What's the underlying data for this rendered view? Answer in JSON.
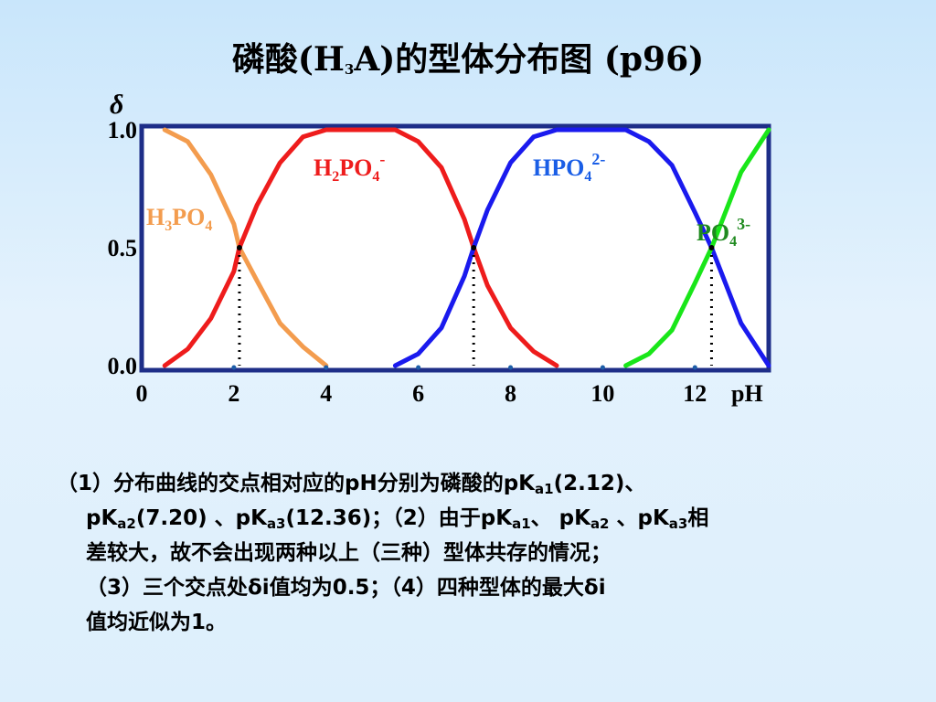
{
  "slide": {
    "title_a": "磷酸(H",
    "title_sub": "3",
    "title_b": "A)的型体分布图 (p96)"
  },
  "chart_data": {
    "type": "line",
    "xlabel": "pH",
    "ylabel": "δ",
    "xlim": [
      0,
      13.6
    ],
    "ylim": [
      0,
      1
    ],
    "x_ticks": [
      "0",
      "2",
      "4",
      "6",
      "8",
      "10",
      "12"
    ],
    "y_ticks": [
      "0.0",
      "0.5",
      "1.0"
    ],
    "pKa": [
      2.12,
      7.2,
      12.36
    ],
    "series": [
      {
        "name": "H3PO4",
        "color": "#f39c4e",
        "points": [
          [
            0.5,
            1.0
          ],
          [
            1.0,
            0.95
          ],
          [
            1.5,
            0.81
          ],
          [
            2.0,
            0.6
          ],
          [
            2.12,
            0.5
          ],
          [
            2.5,
            0.36
          ],
          [
            3.0,
            0.18
          ],
          [
            3.5,
            0.08
          ],
          [
            4.0,
            0.0
          ]
        ]
      },
      {
        "name": "H2PO4-",
        "color": "#ee1c1c",
        "points": [
          [
            0.5,
            0.0
          ],
          [
            1.0,
            0.07
          ],
          [
            1.5,
            0.2
          ],
          [
            2.0,
            0.4
          ],
          [
            2.12,
            0.5
          ],
          [
            2.5,
            0.68
          ],
          [
            3.0,
            0.86
          ],
          [
            3.5,
            0.97
          ],
          [
            4.0,
            1.0
          ],
          [
            5.5,
            1.0
          ],
          [
            6.0,
            0.95
          ],
          [
            6.5,
            0.84
          ],
          [
            7.0,
            0.62
          ],
          [
            7.2,
            0.5
          ],
          [
            7.5,
            0.34
          ],
          [
            8.0,
            0.16
          ],
          [
            8.5,
            0.06
          ],
          [
            9.0,
            0.0
          ]
        ]
      },
      {
        "name": "HPO42-",
        "color": "#1a1aee",
        "points": [
          [
            5.5,
            0.0
          ],
          [
            6.0,
            0.05
          ],
          [
            6.5,
            0.16
          ],
          [
            7.0,
            0.38
          ],
          [
            7.2,
            0.5
          ],
          [
            7.5,
            0.66
          ],
          [
            8.0,
            0.86
          ],
          [
            8.5,
            0.97
          ],
          [
            9.0,
            1.0
          ],
          [
            10.5,
            1.0
          ],
          [
            11.0,
            0.95
          ],
          [
            11.5,
            0.85
          ],
          [
            12.0,
            0.65
          ],
          [
            12.36,
            0.5
          ],
          [
            12.6,
            0.38
          ],
          [
            13.0,
            0.18
          ],
          [
            13.6,
            0.0
          ]
        ]
      },
      {
        "name": "PO43-",
        "color": "#19e619",
        "points": [
          [
            10.5,
            0.0
          ],
          [
            11.0,
            0.05
          ],
          [
            11.5,
            0.15
          ],
          [
            12.0,
            0.35
          ],
          [
            12.36,
            0.5
          ],
          [
            12.6,
            0.62
          ],
          [
            13.0,
            0.82
          ],
          [
            13.6,
            1.0
          ]
        ]
      }
    ]
  },
  "labels": {
    "h3po4": {
      "a": "H",
      "s1": "3",
      "b": "PO",
      "s2": "4"
    },
    "h2po4": {
      "a": "H",
      "s1": "2",
      "b": "PO",
      "s2": "4",
      "charge": "-"
    },
    "hpo4": {
      "a": "HPO",
      "s1": "4",
      "charge": "2-"
    },
    "po4": {
      "a": "PO",
      "s1": "4",
      "charge": "3-"
    }
  },
  "notes": {
    "l1_a": "（1）分布曲线的交点相对应的pH分别为磷酸的pK",
    "sub_a1": "a1",
    "l1_b": "(2.12)、",
    "l2_a": "pK",
    "sub_a2": "a2",
    "l2_b": "(7.20) 、pK",
    "sub_a3": "a3",
    "l2_c": "(12.36)；（2）由于pK",
    "sub_a1b": "a1",
    "l2_d": "、 pK",
    "sub_a2b": "a2",
    "l2_e": " 、pK",
    "sub_a3b": "a3",
    "l2_f": "相",
    "l3": "差较大，故不会出现两种以上（三种）型体共存的情况；",
    "l4": "（3）三个交点处δi值均为0.5；（4）四种型体的最大δi",
    "l5": "值均近似为1。"
  }
}
